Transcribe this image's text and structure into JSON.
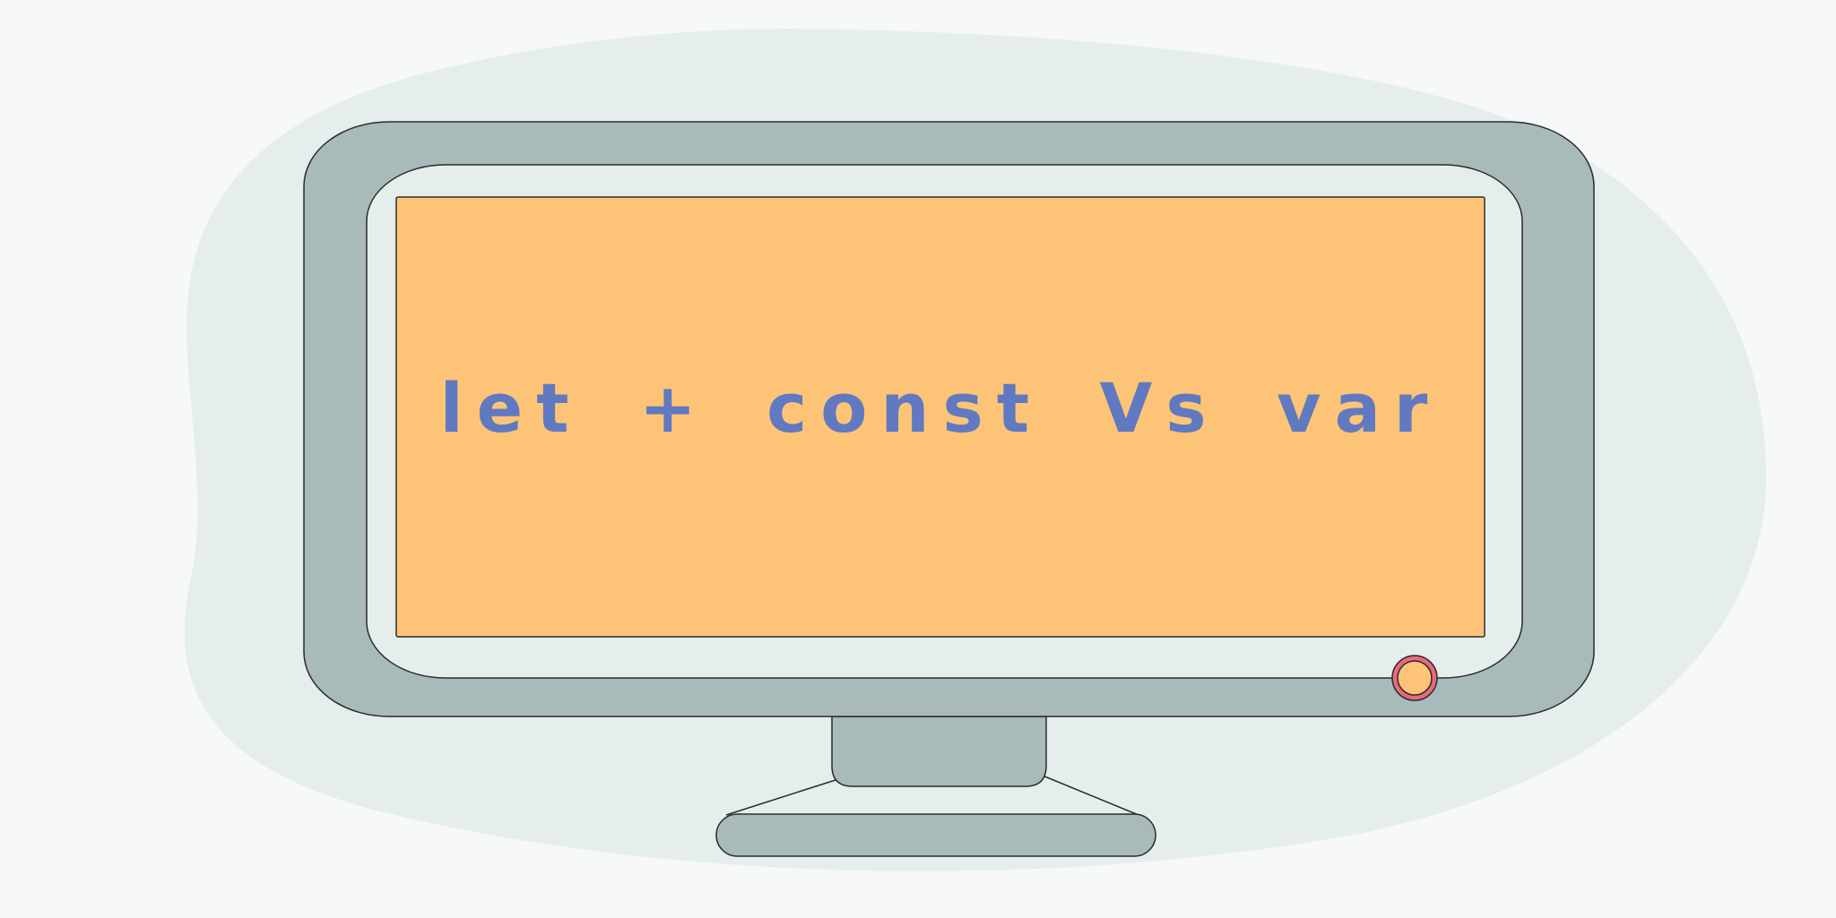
{
  "screen": {
    "text": "“ let + const Vs var ”"
  },
  "colors": {
    "page_background": "#f6f8f9",
    "blob": "#e5eeec",
    "monitor_body": "#a8bab9",
    "bezel_inner": "#e6eeec",
    "screen": "#fdc477",
    "text": "#6079c1",
    "power_ring": "#e8697d",
    "power_center": "#fdc477",
    "outline": "#2b2b2b"
  },
  "icons": {
    "monitor": "monitor-illustration",
    "power_button": "power-button-icon"
  }
}
